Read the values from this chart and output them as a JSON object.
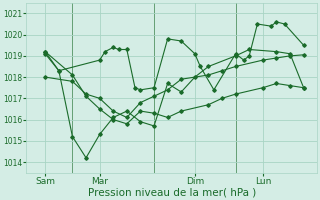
{
  "bg_color": "#d4ede5",
  "grid_color": "#a8d4c4",
  "line_color": "#1a6b2a",
  "marker_color": "#1a6b2a",
  "xlabel": "Pression niveau de la mer( hPa )",
  "xlabel_fontsize": 7.5,
  "ylim": [
    1013.5,
    1021.5
  ],
  "yticks": [
    1014,
    1015,
    1016,
    1017,
    1018,
    1019,
    1020,
    1021
  ],
  "xtick_labels": [
    "Sam",
    "Mar",
    "Dim",
    "Lun"
  ],
  "xtick_positions": [
    0.5,
    2.5,
    6.0,
    8.5
  ],
  "vline_positions": [
    1.5,
    4.5,
    7.5
  ],
  "xlim": [
    -0.2,
    10.5
  ],
  "series1_x": [
    0.5,
    1.0,
    2.5,
    2.7,
    3.0,
    3.2,
    3.5,
    3.8,
    4.0,
    4.5,
    5.0,
    5.5,
    6.0,
    6.2,
    6.7,
    7.5,
    7.8,
    8.0,
    8.3,
    8.8,
    9.0,
    9.3,
    10.0
  ],
  "series1_y": [
    1019.2,
    1018.3,
    1018.8,
    1019.2,
    1019.4,
    1019.3,
    1019.3,
    1017.5,
    1017.4,
    1017.5,
    1019.8,
    1019.7,
    1019.1,
    1018.5,
    1017.4,
    1019.1,
    1018.8,
    1019.0,
    1020.5,
    1020.4,
    1020.6,
    1020.5,
    1019.5
  ],
  "series2_x": [
    0.5,
    1.5,
    2.0,
    2.5,
    3.0,
    3.5,
    4.0,
    4.5,
    5.0,
    5.5,
    6.5,
    7.0,
    7.5,
    8.5,
    9.0,
    9.5,
    10.0
  ],
  "series2_y": [
    1019.2,
    1018.1,
    1017.1,
    1016.5,
    1016.0,
    1015.8,
    1016.4,
    1016.3,
    1016.1,
    1016.4,
    1016.7,
    1017.0,
    1017.2,
    1017.5,
    1017.7,
    1017.6,
    1017.5
  ],
  "series3_x": [
    0.5,
    1.5,
    2.0,
    2.5,
    3.0,
    3.5,
    4.0,
    4.5,
    5.0,
    5.5,
    6.5,
    7.0,
    7.5,
    8.5,
    9.0,
    9.5,
    10.0
  ],
  "series3_y": [
    1018.0,
    1017.8,
    1017.2,
    1017.0,
    1016.4,
    1016.1,
    1016.8,
    1017.1,
    1017.4,
    1017.9,
    1018.1,
    1018.3,
    1018.5,
    1018.8,
    1018.9,
    1019.0,
    1019.05
  ],
  "series4_x": [
    0.5,
    1.0,
    1.5,
    2.0,
    2.5,
    3.0,
    3.5,
    4.0,
    4.5,
    5.0,
    5.5,
    6.0,
    6.5,
    7.5,
    8.0,
    9.0,
    9.5,
    10.0
  ],
  "series4_y": [
    1019.1,
    1018.3,
    1015.2,
    1014.2,
    1015.3,
    1016.1,
    1016.4,
    1015.9,
    1015.7,
    1017.7,
    1017.3,
    1018.0,
    1018.5,
    1019.0,
    1019.3,
    1019.2,
    1019.1,
    1017.5
  ]
}
